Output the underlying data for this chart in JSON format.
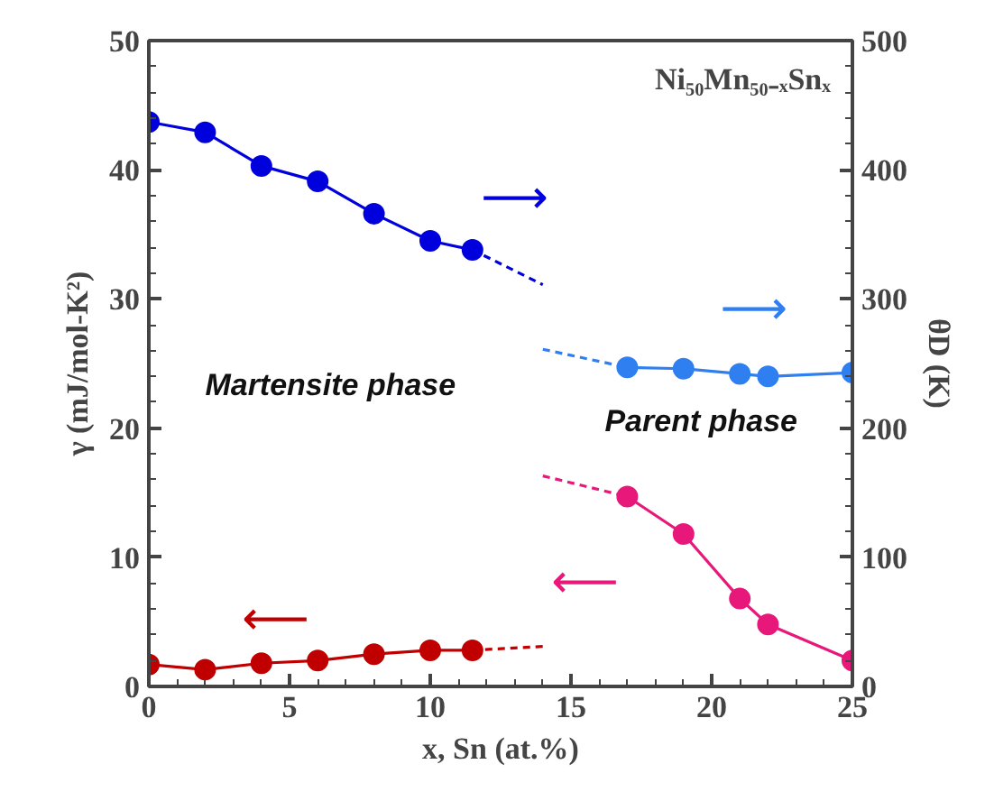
{
  "chart_data": {
    "type": "line",
    "title": "Ni₅₀Mn₅₀₋ₓSnₓ",
    "xlabel": "x, Sn (at.%)",
    "ylabel": "γ (mJ/mol-K²)",
    "y2label": "θD (K)",
    "annotations": [
      "⟶",
      "⟶",
      "⟵",
      "⟵",
      "Martensite phase",
      "Parent phase"
    ],
    "xlim": [
      0,
      25
    ],
    "xticks": [
      0,
      5,
      10,
      15,
      20,
      25
    ],
    "ylim": [
      0,
      50
    ],
    "yticks": [
      0,
      10,
      20,
      30,
      40,
      50
    ],
    "y2lim": [
      0,
      500
    ],
    "y2ticks": [
      0,
      100,
      200,
      300,
      400,
      500
    ],
    "grid": false,
    "marker": "circle",
    "line_style": "solid",
    "series": [
      {
        "color": "#0000dd",
        "axis": "y2",
        "x": [
          0,
          2,
          4,
          6,
          8,
          10,
          11.5
        ],
        "values": [
          437,
          429,
          403,
          391,
          366,
          345,
          338
        ]
      },
      {
        "color": "#2f7ff0",
        "axis": "y2",
        "x": [
          17,
          19,
          21,
          22,
          25
        ],
        "values": [
          247,
          246,
          242,
          240,
          243
        ]
      },
      {
        "color": "#e8187a",
        "x": [
          17,
          19,
          21,
          22,
          25
        ],
        "values": [
          14.7,
          11.8,
          6.8,
          4.8,
          2.0
        ]
      },
      {
        "color": "#c00000",
        "x": [
          0,
          2,
          4,
          6,
          8,
          10,
          11.5
        ],
        "values": [
          1.7,
          1.3,
          1.8,
          2.0,
          2.5,
          2.8,
          2.8
        ]
      },
      {
        "color": "#0000dd",
        "axis": "y2",
        "marker": "none",
        "line_style": "dashed",
        "x": [
          11.5,
          14
        ],
        "values": [
          338,
          311
        ]
      },
      {
        "color": "#2f7ff0",
        "axis": "y2",
        "marker": "none",
        "line_style": "dashed",
        "x": [
          14,
          17
        ],
        "values": [
          261,
          247
        ]
      },
      {
        "color": "#e8187a",
        "marker": "none",
        "line_style": "dashed",
        "x": [
          14,
          17
        ],
        "values": [
          16.3,
          14.7
        ]
      },
      {
        "color": "#c00000",
        "marker": "none",
        "line_style": "dashed",
        "x": [
          11.5,
          14
        ],
        "values": [
          2.8,
          3.1
        ]
      }
    ]
  }
}
